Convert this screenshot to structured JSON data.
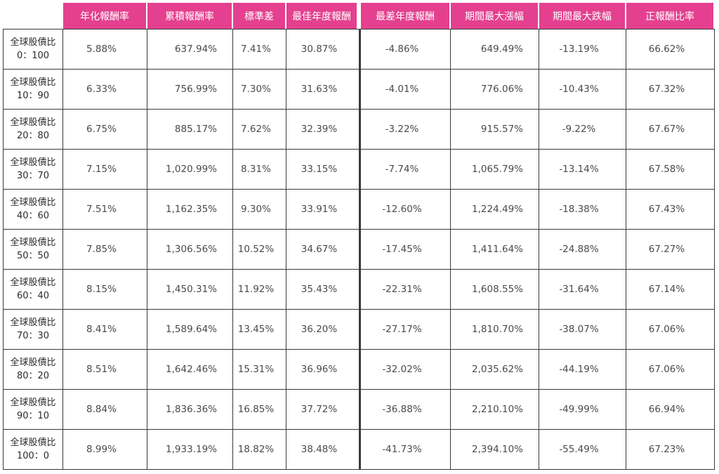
{
  "chart_data": {
    "type": "table",
    "columns": [
      "",
      "年化報酬率",
      "累積報酬率",
      "標準差",
      "最佳年度報酬",
      "最差年度報酬",
      "期間最大漲幅",
      "期間最大跌幅",
      "正報酬比率"
    ],
    "rows": [
      {
        "label": [
          "全球股債比",
          "0：100"
        ],
        "values": [
          "5.88%",
          "637.94%",
          "7.41%",
          "30.87%",
          "-4.86%",
          "649.49%",
          "-13.19%",
          "66.62%"
        ]
      },
      {
        "label": [
          "全球股債比",
          "10：90"
        ],
        "values": [
          "6.33%",
          "756.99%",
          "7.30%",
          "31.63%",
          "-4.01%",
          "776.06%",
          "-10.43%",
          "67.32%"
        ]
      },
      {
        "label": [
          "全球股債比",
          "20：80"
        ],
        "values": [
          "6.75%",
          "885.17%",
          "7.62%",
          "32.39%",
          "-3.22%",
          "915.57%",
          "-9.22%",
          "67.67%"
        ]
      },
      {
        "label": [
          "全球股債比",
          "30：70"
        ],
        "values": [
          "7.15%",
          "1,020.99%",
          "8.31%",
          "33.15%",
          "-7.74%",
          "1,065.79%",
          "-13.14%",
          "67.58%"
        ]
      },
      {
        "label": [
          "全球股債比",
          "40：60"
        ],
        "values": [
          "7.51%",
          "1,162.35%",
          "9.30%",
          "33.91%",
          "-12.60%",
          "1,224.49%",
          "-18.38%",
          "67.43%"
        ]
      },
      {
        "label": [
          "全球股債比",
          "50：50"
        ],
        "values": [
          "7.85%",
          "1,306.56%",
          "10.52%",
          "34.67%",
          "-17.45%",
          "1,411.64%",
          "-24.88%",
          "67.27%"
        ]
      },
      {
        "label": [
          "全球股債比",
          "60：40"
        ],
        "values": [
          "8.15%",
          "1,450.31%",
          "11.92%",
          "35.43%",
          "-22.31%",
          "1,608.55%",
          "-31.64%",
          "67.14%"
        ]
      },
      {
        "label": [
          "全球股債比",
          "70：30"
        ],
        "values": [
          "8.41%",
          "1,589.64%",
          "13.45%",
          "36.20%",
          "-27.17%",
          "1,810.70%",
          "-38.07%",
          "67.06%"
        ]
      },
      {
        "label": [
          "全球股債比",
          "80：20"
        ],
        "values": [
          "8.51%",
          "1,642.46%",
          "15.31%",
          "36.96%",
          "-32.02%",
          "2,035.62%",
          "-44.19%",
          "67.06%"
        ]
      },
      {
        "label": [
          "全球股債比",
          "90：10"
        ],
        "values": [
          "8.84%",
          "1,836.36%",
          "16.85%",
          "37.72%",
          "-36.88%",
          "2,210.10%",
          "-49.99%",
          "66.94%"
        ]
      },
      {
        "label": [
          "全球股債比",
          "100：0"
        ],
        "values": [
          "8.99%",
          "1,933.19%",
          "18.82%",
          "38.48%",
          "-41.73%",
          "2,394.10%",
          "-55.49%",
          "67.23%"
        ]
      }
    ],
    "header_color": "#e4408f"
  }
}
